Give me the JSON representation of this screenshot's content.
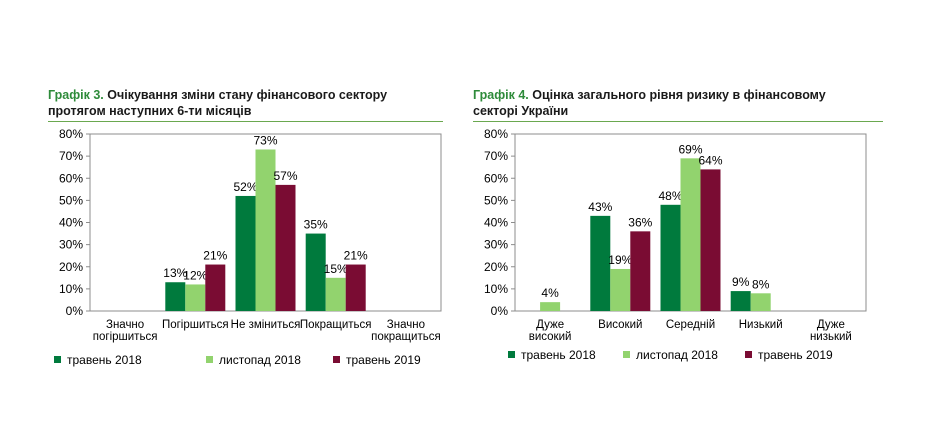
{
  "charts": [
    {
      "title_prefix": "Графік 3.",
      "title_line1": " Очікування зміни стану фінансового сектору",
      "title_line2": "протягом наступних 6-ти місяців"
    },
    {
      "title_prefix": "Графік 4.",
      "title_line1": " Оцінка загального рівня ризику в фінансовому",
      "title_line2": "секторі України"
    }
  ],
  "colors": {
    "series": [
      "#007a3d",
      "#92d36e",
      "#7a0c33"
    ],
    "title_accent": "#2e8b3a",
    "rule": "#6aa84f"
  },
  "chart_data": [
    {
      "type": "bar",
      "categories": [
        [
          "Значно",
          "погіршиться"
        ],
        [
          "Погіршиться"
        ],
        [
          "Не зміниться"
        ],
        [
          "Покращиться"
        ],
        [
          "Значно",
          "покращиться"
        ]
      ],
      "series": [
        {
          "name": "травень 2018",
          "values": [
            null,
            13,
            52,
            35,
            null
          ]
        },
        {
          "name": "листопад 2018",
          "values": [
            null,
            12,
            73,
            15,
            null
          ]
        },
        {
          "name": "травень 2019",
          "values": [
            null,
            21,
            57,
            21,
            null
          ]
        }
      ],
      "ylim": [
        0,
        80
      ],
      "yticks": [
        "0%",
        "10%",
        "20%",
        "30%",
        "40%",
        "50%",
        "60%",
        "70%",
        "80%"
      ],
      "value_suffix": "%",
      "legend": "bottom"
    },
    {
      "type": "bar",
      "categories": [
        [
          "Дуже",
          "високий"
        ],
        [
          "Високий"
        ],
        [
          "Середній"
        ],
        [
          "Низький"
        ],
        [
          "Дуже",
          "низький"
        ]
      ],
      "series": [
        {
          "name": "травень 2018",
          "values": [
            null,
            43,
            48,
            9,
            null
          ]
        },
        {
          "name": "листопад 2018",
          "values": [
            4,
            19,
            69,
            8,
            null
          ]
        },
        {
          "name": "травень 2019",
          "values": [
            null,
            36,
            64,
            null,
            null
          ]
        }
      ],
      "ylim": [
        0,
        80
      ],
      "yticks": [
        "0%",
        "10%",
        "20%",
        "30%",
        "40%",
        "50%",
        "60%",
        "70%",
        "80%"
      ],
      "value_suffix": "%",
      "legend": "bottom"
    }
  ]
}
